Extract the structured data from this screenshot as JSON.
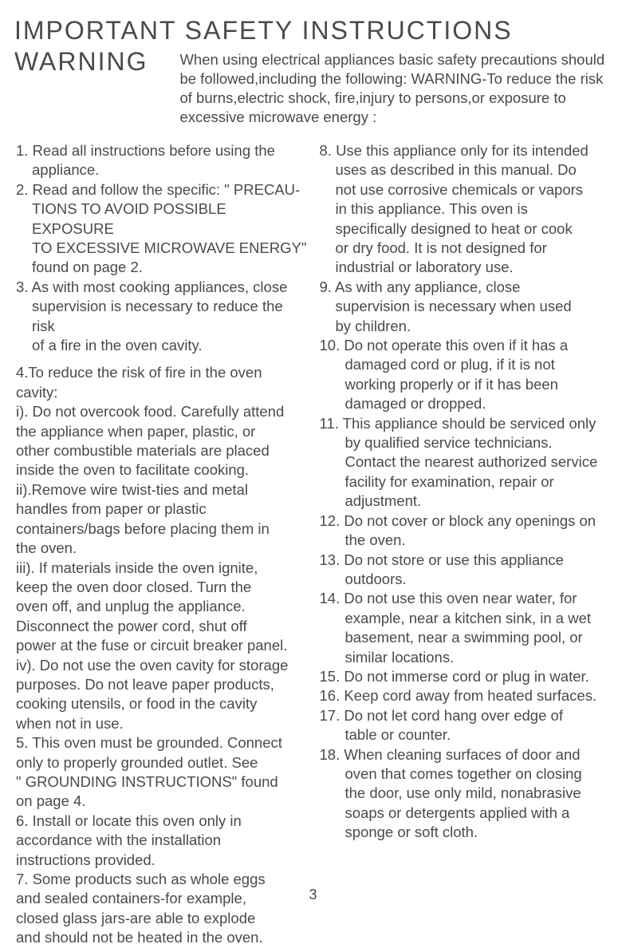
{
  "title": "IMPORTANT SAFETY INSTRUCTIONS",
  "warning_label": "WARNING",
  "intro": "When using electrical appliances basic safety precautions should be followed,including the following: WARNING-To reduce the risk of burns,electric shock, fire,injury to persons,or exposure to excessive microwave energy :",
  "left_col": {
    "item1_a": "1. Read all instructions before using the",
    "item1_b": "appliance.",
    "item2_a": "2. Read and follow the specific: \" PRECAU-",
    "item2_b": "TIONS TO AVOID POSSIBLE EXPOSURE",
    "item2_c": "TO EXCESSIVE MICROWAVE ENERGY\"",
    "item2_d": "found on page 2.",
    "item3_a": "3. As with most cooking appliances, close",
    "item3_b": "supervision is necessary to reduce the risk",
    "item3_c": "of a fire in the oven cavity.",
    "item4_a": "4.To reduce the risk of fire in the oven",
    "item4_b": "cavity:",
    "item4_c": "i). Do not overcook food. Carefully attend",
    "item4_d": "the appliance when paper, plastic, or",
    "item4_e": "other combustible materials are placed",
    "item4_f": "inside the oven to facilitate cooking.",
    "item4_g": "ii).Remove wire twist-ties and metal",
    "item4_h": " handles from paper or plastic",
    "item4_i": "containers/bags before placing them in",
    "item4_j": "the oven.",
    "item4_k": "iii). If materials inside the oven ignite,",
    "item4_l": "keep the oven door closed. Turn the",
    "item4_m": "oven off, and unplug the appliance.",
    "item4_n": "Disconnect the power cord, shut off",
    "item4_o": "power at the fuse or circuit breaker panel.",
    "item4_p": "iv). Do not use the oven cavity for storage",
    "item4_q": "purposes. Do not leave paper products,",
    "item4_r": "cooking utensils, or food in the cavity",
    "item4_s": "when not in use.",
    "item5_a": "5. This oven must be grounded. Connect",
    "item5_b": " only to properly grounded outlet. See",
    "item5_c": "\" GROUNDING INSTRUCTIONS\"  found",
    "item5_d": "on page 4.",
    "item6_a": "6. Install or locate this oven only in",
    "item6_b": " accordance with the installation",
    "item6_c": "instructions provided.",
    "item7_a": "7. Some products such as whole eggs",
    "item7_b": "and sealed containers-for example,",
    "item7_c": "closed glass jars-are able to explode",
    "item7_d": "and should not be heated in the oven."
  },
  "right_col": {
    "item8_a": "8. Use this appliance only for its intended",
    "item8_b": "uses as described in this manual. Do",
    "item8_c": "not use corrosive chemicals or vapors",
    "item8_d": "in this appliance. This oven is",
    "item8_e": "specifically designed to heat or cook",
    "item8_f": " or dry  food. It is not designed for",
    "item8_g": " industrial or laboratory use.",
    "item9_a": "9.  As with any appliance, close",
    "item9_b": "supervision is necessary when used",
    "item9_c": "by children.",
    "item10_a": "10. Do not operate this oven if it has a",
    "item10_b": "damaged cord or plug, if it is not",
    "item10_c": "working properly or if it has been",
    "item10_d": "damaged or dropped.",
    "item11_a": "11. This appliance should be serviced only",
    "item11_b": "by qualified service technicians.",
    "item11_c": "Contact the nearest authorized service",
    "item11_d": "facility for examination, repair or",
    "item11_e": "adjustment.",
    "item12_a": "12. Do not cover or block any openings on",
    "item12_b": " the oven.",
    "item13_a": "13. Do not store or use this appliance",
    "item13_b": "outdoors.",
    "item14_a": "14. Do not use this oven near water, for",
    "item14_b": "example, near a kitchen sink, in a wet",
    "item14_c": "basement, near a swimming pool, or",
    "item14_d": "similar locations.",
    "item15_a": "15. Do not immerse cord or plug in water.",
    "item16_a": "16. Keep cord away from heated surfaces.",
    "item17_a": "17. Do not let cord hang over edge of",
    "item17_b": "table or counter.",
    "item18_a": "18. When cleaning  surfaces of door and",
    "item18_b": "oven that comes together on closing",
    "item18_c": "the door, use only mild, nonabrasive",
    "item18_d": "soaps or detergents applied with a",
    "item18_e": "sponge or soft cloth."
  },
  "page_number": "3"
}
